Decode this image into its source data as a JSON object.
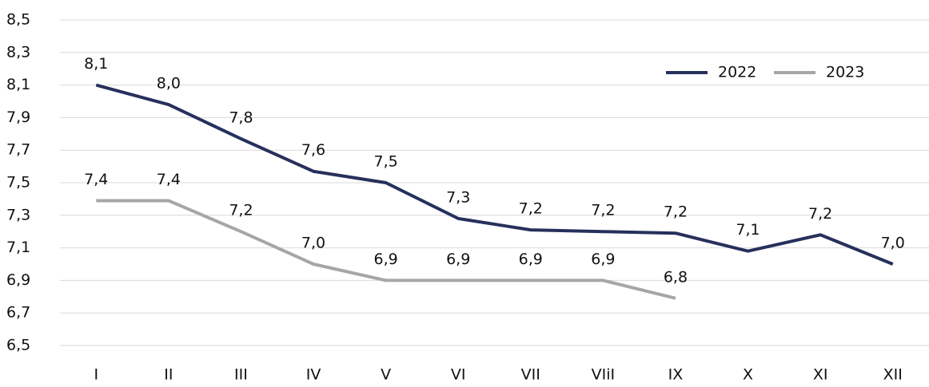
{
  "chart_data": {
    "type": "line",
    "categories": [
      "I",
      "II",
      "III",
      "IV",
      "V",
      "VI",
      "VII",
      "VIiI",
      "IX",
      "X",
      "XI",
      "XII"
    ],
    "series": [
      {
        "name": "2022",
        "color": "#27305c",
        "values": [
          8.1,
          7.98,
          7.77,
          7.57,
          7.5,
          7.28,
          7.21,
          7.2,
          7.19,
          7.08,
          7.18,
          7.0
        ],
        "value_labels": [
          "8,1",
          "8,0",
          "7,8",
          "7,6",
          "7,5",
          "7,3",
          "7,2",
          "7,2",
          "7,2",
          "7,1",
          "7,2",
          "7,0"
        ]
      },
      {
        "name": "2023",
        "color": "#a8a6a4",
        "values": [
          7.39,
          7.39,
          7.2,
          7.0,
          6.9,
          6.9,
          6.9,
          6.9,
          6.79,
          null,
          null,
          null
        ],
        "value_labels": [
          "7,4",
          "7,4",
          "7,2",
          "7,0",
          "6,9",
          "6,9",
          "6,9",
          "6,9",
          "6,8",
          null,
          null,
          null
        ]
      }
    ],
    "ylim": [
      6.5,
      8.5
    ],
    "yticks": [
      {
        "value": 6.5,
        "label": "6,5"
      },
      {
        "value": 6.7,
        "label": "6,7"
      },
      {
        "value": 6.9,
        "label": "6,9"
      },
      {
        "value": 7.1,
        "label": "7,1"
      },
      {
        "value": 7.3,
        "label": "7,3"
      },
      {
        "value": 7.5,
        "label": "7,5"
      },
      {
        "value": 7.7,
        "label": "7,7"
      },
      {
        "value": 7.9,
        "label": "7,9"
      },
      {
        "value": 8.1,
        "label": "8,1"
      },
      {
        "value": 8.3,
        "label": "8,3"
      },
      {
        "value": 8.5,
        "label": "8,5"
      }
    ],
    "grid": true,
    "legend": "top-right"
  }
}
